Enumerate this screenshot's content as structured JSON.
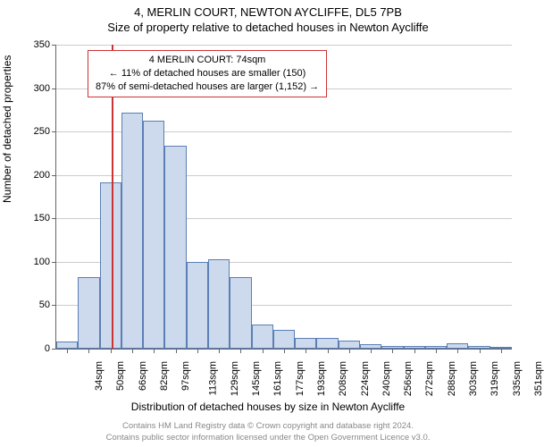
{
  "chart": {
    "type": "histogram",
    "title": "4, MERLIN COURT, NEWTON AYCLIFFE, DL5 7PB",
    "subtitle": "Size of property relative to detached houses in Newton Aycliffe",
    "ylabel": "Number of detached properties",
    "xlabel": "Distribution of detached houses by size in Newton Aycliffe",
    "ylim": [
      0,
      350
    ],
    "ytick_step": 50,
    "yticks": [
      0,
      50,
      100,
      150,
      200,
      250,
      300,
      350
    ],
    "xticks": [
      "34sqm",
      "50sqm",
      "66sqm",
      "82sqm",
      "97sqm",
      "113sqm",
      "129sqm",
      "145sqm",
      "161sqm",
      "177sqm",
      "193sqm",
      "208sqm",
      "224sqm",
      "240sqm",
      "256sqm",
      "272sqm",
      "288sqm",
      "303sqm",
      "319sqm",
      "335sqm",
      "351sqm"
    ],
    "values": [
      8,
      82,
      192,
      272,
      263,
      234,
      100,
      103,
      82,
      28,
      22,
      12,
      12,
      9,
      5,
      3,
      3,
      3,
      6,
      3,
      2
    ],
    "bar_fill": "#cdd9ed",
    "bar_stroke": "#5b7fb5",
    "grid_color": "#cccccc",
    "axis_color": "#666666",
    "background_color": "#ffffff",
    "marker_index": 2.55,
    "marker_color": "#cc3333",
    "annotation": {
      "line1": "4 MERLIN COURT: 74sqm",
      "line2": "← 11% of detached houses are smaller (150)",
      "line3": "87% of semi-detached houses are larger (1,152) →",
      "border_color": "#cc3333"
    },
    "title_fontsize": 13,
    "label_fontsize": 12,
    "tick_fontsize": 11
  },
  "footer": {
    "line1": "Contains HM Land Registry data © Crown copyright and database right 2024.",
    "line2": "Contains public sector information licensed under the Open Government Licence v3.0."
  }
}
